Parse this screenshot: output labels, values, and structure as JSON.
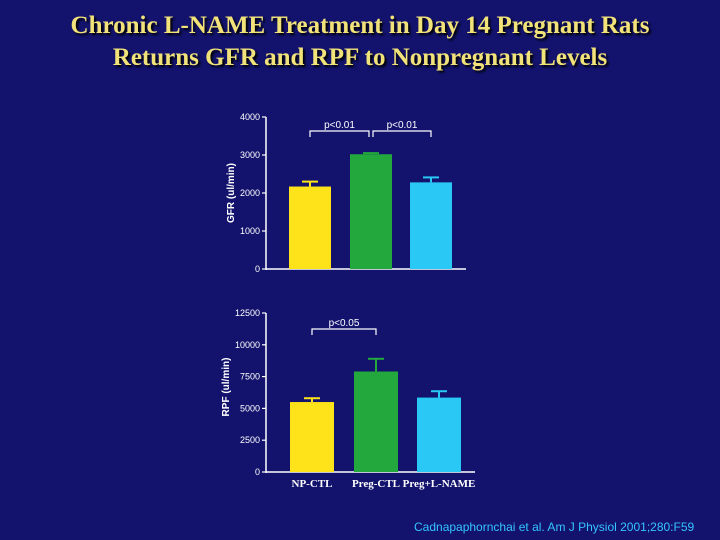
{
  "slide": {
    "title_line1": "Chronic L-NAME Treatment in Day 14 Pregnant Rats",
    "title_line2": "Returns GFR and RPF to Nonpregnant Levels",
    "citation": "Cadnapaphornchai et al. Am J Physiol 2001;280:F59"
  },
  "colors": {
    "background": "#13136e",
    "title": "#f2e27a",
    "citation": "#35c4ff",
    "axis": "#ffffff",
    "np_ctl": "#ffe31a",
    "preg_ctl": "#22a83c",
    "preg_lname": "#29c8f5"
  },
  "chart_data": [
    {
      "type": "bar",
      "title": "",
      "xlabel": "",
      "ylabel": "GFR (ul/min)",
      "ylim": [
        0,
        4000
      ],
      "yticks": [
        "0",
        "1000",
        "2000",
        "3000",
        "4000"
      ],
      "yticks_values": [
        0,
        1000,
        2000,
        3000,
        4000
      ],
      "categories": [
        "NP-CTL",
        "Preg-CTL",
        "Preg+L-NAME"
      ],
      "category_labels_shown": false,
      "values": [
        2170,
        3020,
        2280
      ],
      "errors": [
        130,
        30,
        130
      ],
      "bar_colors": [
        "#ffe31a",
        "#22a83c",
        "#29c8f5"
      ],
      "significance": [
        {
          "from": 0,
          "to": 1,
          "label": "p<0.01"
        },
        {
          "from": 1,
          "to": 2,
          "label": "p<0.01"
        }
      ]
    },
    {
      "type": "bar",
      "title": "",
      "xlabel": "",
      "ylabel": "RPF (ul/min)",
      "ylim": [
        0,
        12500
      ],
      "yticks": [
        "0",
        "2500",
        "5000",
        "7500",
        "10000",
        "12500"
      ],
      "yticks_values": [
        0,
        2500,
        5000,
        7500,
        10000,
        12500
      ],
      "categories": [
        "NP-CTL",
        "Preg-CTL",
        "Preg+L-NAME"
      ],
      "category_labels_shown": true,
      "values": [
        5500,
        7900,
        5850
      ],
      "errors": [
        300,
        1000,
        500
      ],
      "bar_colors": [
        "#ffe31a",
        "#22a83c",
        "#29c8f5"
      ],
      "significance": [
        {
          "from": 0,
          "to": 1,
          "label": "p<0.05"
        }
      ]
    }
  ]
}
